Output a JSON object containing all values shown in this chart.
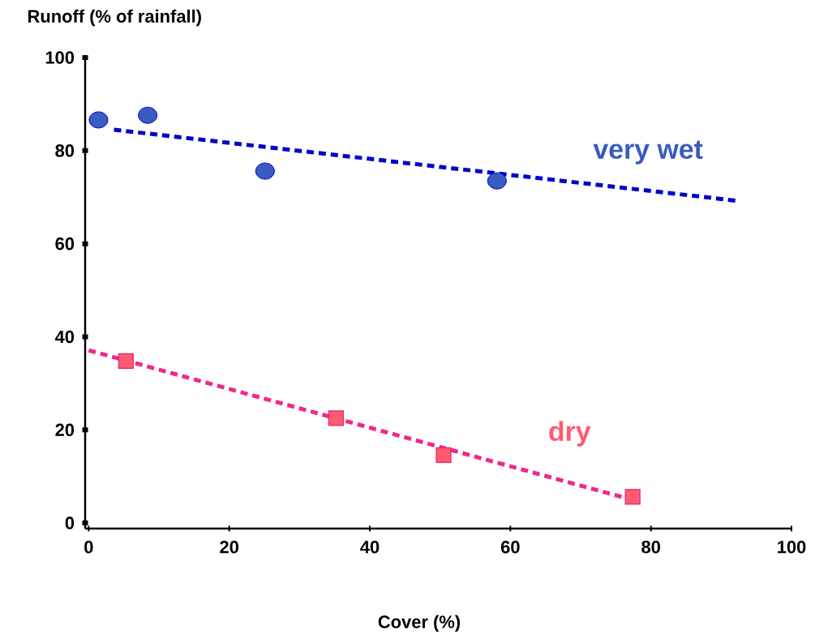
{
  "chart_data": {
    "type": "scatter",
    "xlabel": "Cover  (%)",
    "ylabel": "Runoff  (% of rainfall)",
    "xlim": [
      -0.5,
      100
    ],
    "ylim": [
      -1.2,
      100
    ],
    "xticks": [
      0,
      20,
      40,
      60,
      80,
      100
    ],
    "yticks": [
      0,
      20,
      40,
      60,
      80,
      100
    ],
    "series": [
      {
        "name": "very wet",
        "marker": "circle",
        "color": "#3a5bbf",
        "x": [
          1.4,
          8.4,
          25.1,
          58.1
        ],
        "values": [
          86.6,
          87.6,
          75.6,
          73.5
        ]
      },
      {
        "type": "line",
        "line_style": "dashed",
        "color": "#0000cc",
        "x": [
          3.6,
          92.4
        ],
        "values": [
          84.5,
          69.2
        ]
      },
      {
        "name": "dry",
        "marker": "square",
        "color": "#ff5a6e",
        "x": [
          5.3,
          35.2,
          50.5,
          77.4
        ],
        "values": [
          34.8,
          22.5,
          14.6,
          5.6
        ]
      },
      {
        "type": "line",
        "line_style": "dashed",
        "color": "#f0288c",
        "x": [
          0,
          76.8
        ],
        "values": [
          37.1,
          5.2
        ]
      }
    ]
  }
}
